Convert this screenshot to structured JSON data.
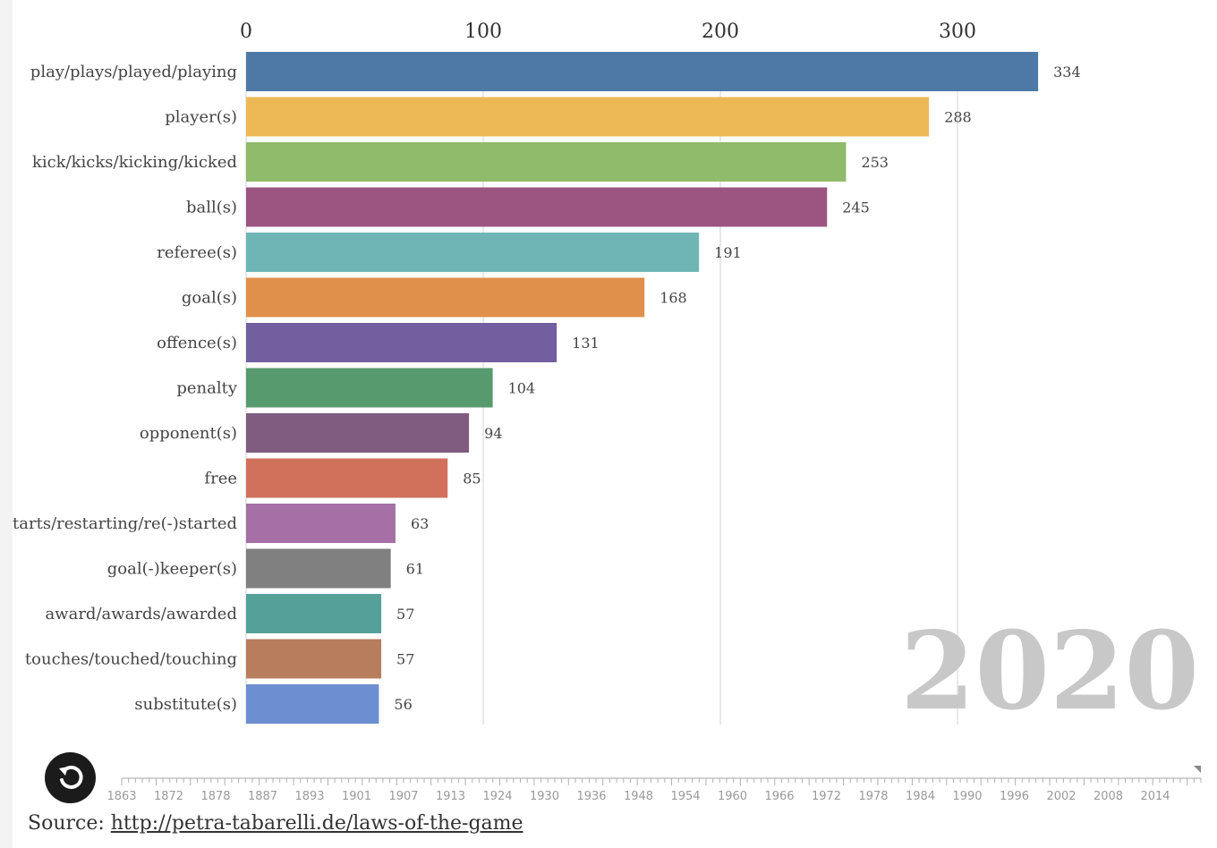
{
  "chart_data": {
    "type": "bar",
    "orientation": "horizontal",
    "categories": [
      "play/plays/played/playing",
      "player(s)",
      "kick/kicks/kicking/kicked",
      "ball(s)",
      "referee(s)",
      "goal(s)",
      "offence(s)",
      "penalty",
      "opponent(s)",
      "free",
      "restarts/restarting/re(-)started",
      "goal(-)keeper(s)",
      "award/awards/awarded",
      "touches/touched/touching",
      "substitute(s)"
    ],
    "values": [
      334,
      288,
      253,
      245,
      191,
      168,
      131,
      104,
      94,
      85,
      63,
      61,
      57,
      57,
      56
    ],
    "colors": [
      "#4e79a7",
      "#edb957",
      "#8fbb6b",
      "#9c5580",
      "#6fb5b5",
      "#e0904a",
      "#725fa0",
      "#579a6d",
      "#7f5c80",
      "#d1715c",
      "#a66fa6",
      "#808080",
      "#55a19a",
      "#b87d5c",
      "#6b8fd0"
    ],
    "x_ticks": [
      0,
      100,
      200,
      300
    ],
    "xlim": [
      0,
      334
    ],
    "grid": true,
    "year": "2020",
    "timeline_years": [
      "1863",
      "1872",
      "1878",
      "1887",
      "1893",
      "1901",
      "1907",
      "1913",
      "1924",
      "1930",
      "1936",
      "1948",
      "1954",
      "1960",
      "1966",
      "1972",
      "1978",
      "1984",
      "1990",
      "1996",
      "2002",
      "2008",
      "2014"
    ]
  },
  "controls": {
    "replay_icon": "replay-icon"
  },
  "source": {
    "label": "Source:",
    "link_text": "http://petra-tabarelli.de/laws-of-the-game"
  }
}
